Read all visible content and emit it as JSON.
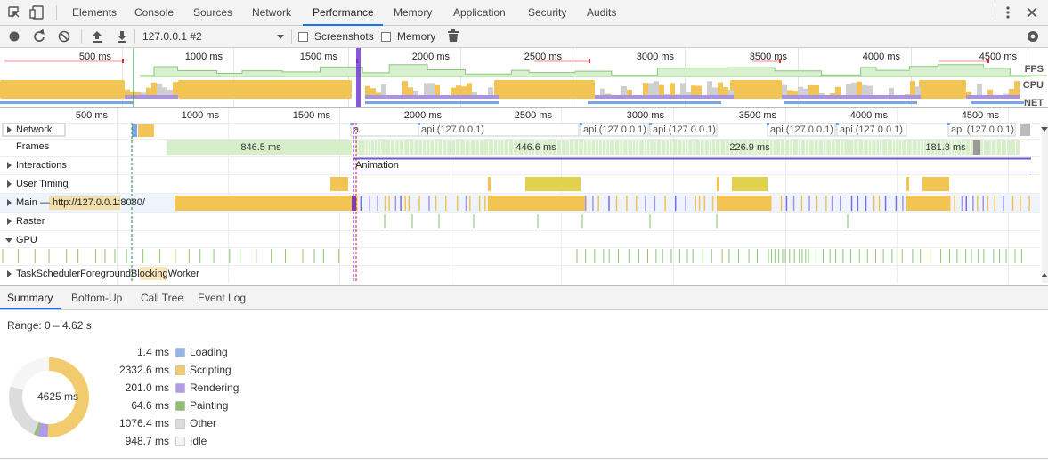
{
  "tabs": [
    "Elements",
    "Console",
    "Sources",
    "Network",
    "Performance",
    "Memory",
    "Application",
    "Security",
    "Audits"
  ],
  "toolbar": {
    "target": "127.0.0.1 #2",
    "checkboxes": [
      "Screenshots",
      "Memory"
    ]
  },
  "overview": {
    "ruler": [
      "500 ms",
      "1000 ms",
      "1500 ms",
      "2000 ms",
      "2500 ms",
      "3000 ms",
      "3500 ms",
      "4000 ms",
      "4500 ms"
    ],
    "tracks": [
      "FPS",
      "CPU",
      "NET"
    ]
  },
  "timeline": {
    "ruler": [
      "500 ms",
      "1000 ms",
      "1500 ms",
      "2000 ms",
      "2500 ms",
      "3000 ms",
      "3500 ms",
      "4000 ms",
      "4500 ms"
    ],
    "tracks": [
      "Network",
      "Frames",
      "Interactions",
      "User Timing",
      "Main — http://127.0.0.1:8080/",
      "Raster",
      "GPU",
      "TaskSchedulerForegroundBlockingWorker"
    ],
    "network_requests": [
      "a",
      "api (127.0.0.1)",
      "api (127.0.0.1)",
      "api (127.0.0.1)",
      "api (127.0.0.1)",
      "api (127.0.0.1)",
      "api (127.0.0.1)"
    ],
    "frames": [
      "846.5 ms",
      "446.6 ms",
      "226.9 ms",
      "181.8 ms"
    ],
    "interactions": [
      "Animation"
    ]
  },
  "details": {
    "tabs": [
      "Summary",
      "Bottom-Up",
      "Call Tree",
      "Event Log"
    ],
    "range": "Range: 0 – 4.62 s",
    "total": "4625 ms",
    "items": [
      {
        "name": "Loading",
        "value": 1.4,
        "value_label": "1.4 ms",
        "color": "#94b6e6"
      },
      {
        "name": "Scripting",
        "value": 2332.6,
        "value_label": "2332.6 ms",
        "color": "#f1cb6d"
      },
      {
        "name": "Rendering",
        "value": 201.0,
        "value_label": "201.0 ms",
        "color": "#b09ce6"
      },
      {
        "name": "Painting",
        "value": 64.6,
        "value_label": "64.6 ms",
        "color": "#8fbf6e"
      },
      {
        "name": "Other",
        "value": 1076.4,
        "value_label": "1076.4 ms",
        "color": "#dcdcdc"
      },
      {
        "name": "Idle",
        "value": 948.7,
        "value_label": "948.7 ms",
        "color": "#f5f5f5"
      }
    ]
  }
}
